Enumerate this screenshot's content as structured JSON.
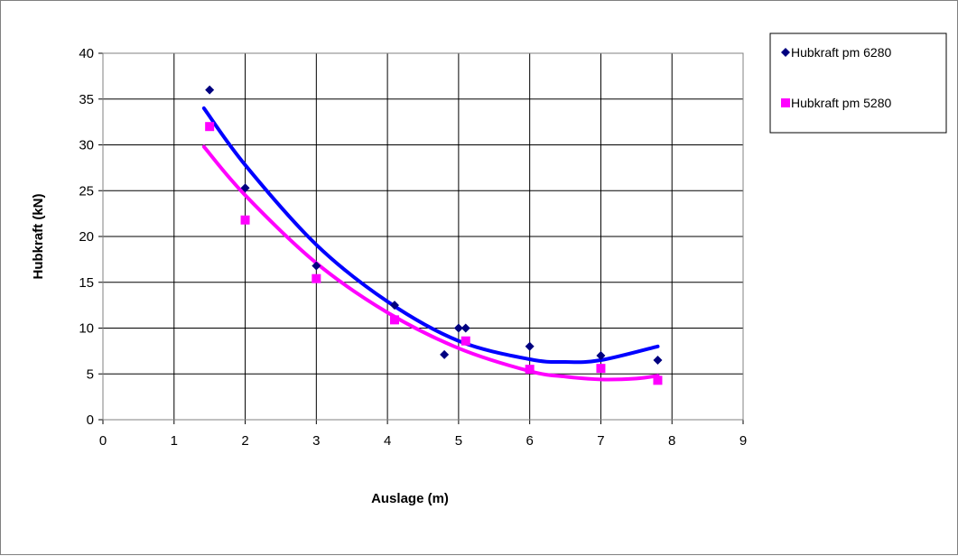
{
  "chart_data": {
    "type": "scatter",
    "title": "",
    "xlabel": "Auslage (m)",
    "ylabel": "Hubkraft (kN)",
    "xlim": [
      0,
      9
    ],
    "ylim": [
      0,
      40
    ],
    "xticks": [
      0,
      1,
      2,
      3,
      4,
      5,
      6,
      7,
      8,
      9
    ],
    "yticks": [
      0,
      5,
      10,
      15,
      20,
      25,
      30,
      35,
      40
    ],
    "grid": true,
    "legend_position": "top-right",
    "series": [
      {
        "name": "Hubkraft pm 6280",
        "marker": "diamond",
        "color": "#000080",
        "trendline_color": "#0000ff",
        "trendline": "polynomial order 2",
        "x": [
          1.5,
          2.0,
          3.0,
          4.1,
          4.8,
          5.0,
          5.1,
          6.0,
          7.0,
          7.8
        ],
        "y": [
          36.0,
          25.3,
          16.8,
          12.5,
          7.1,
          10.0,
          10.0,
          8.0,
          7.0,
          6.5
        ],
        "trend_x": [
          1.42,
          2.0,
          3.0,
          4.0,
          5.0,
          6.0,
          6.5,
          7.0,
          7.8
        ],
        "trend_y": [
          34.0,
          27.8,
          19.1,
          12.9,
          8.6,
          6.6,
          6.3,
          6.5,
          8.0
        ]
      },
      {
        "name": "Hubkraft pm 5280",
        "marker": "square",
        "color": "#ff00ff",
        "trendline_color": "#ff00ff",
        "trendline": "polynomial order 2",
        "x": [
          1.5,
          2.0,
          3.0,
          4.1,
          5.1,
          6.0,
          7.0,
          7.8
        ],
        "y": [
          32.0,
          21.8,
          15.4,
          10.9,
          8.6,
          5.5,
          5.6,
          4.3
        ],
        "trend_x": [
          1.42,
          2.0,
          3.0,
          4.0,
          5.0,
          6.0,
          6.5,
          7.0,
          7.5,
          7.8
        ],
        "trend_y": [
          29.8,
          24.5,
          17.1,
          11.7,
          7.8,
          5.3,
          4.7,
          4.4,
          4.5,
          4.8
        ]
      }
    ]
  }
}
